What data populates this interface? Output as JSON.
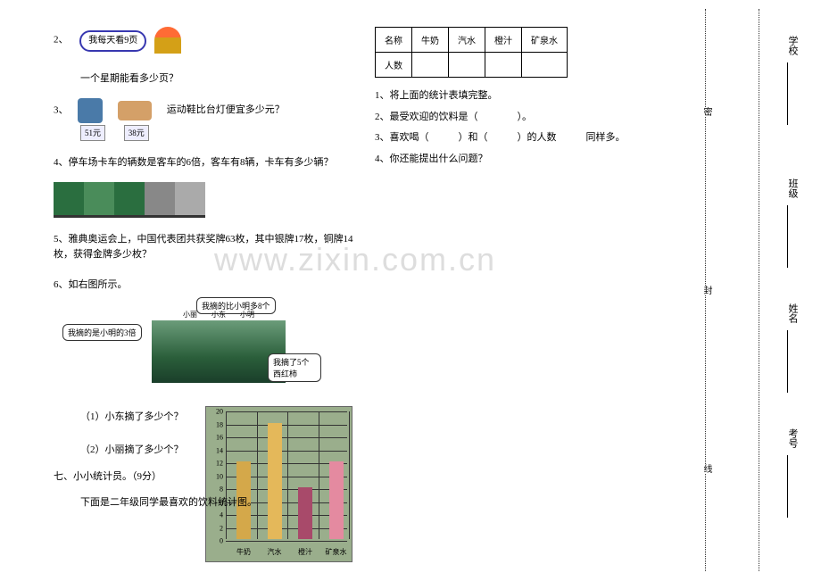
{
  "watermark": "www.zixin.com.cn",
  "left": {
    "q2": {
      "num": "2、",
      "speech": "我每天看9页",
      "below": "一个星期能看多少页？"
    },
    "q3": {
      "num": "3、",
      "text": "运动鞋比台灯便宜多少元？",
      "lamp_price": "51元",
      "shoe_price": "38元"
    },
    "q4": {
      "text": "4、停车场卡车的辆数是客车的6倍，客车有8辆，卡车有多少辆？"
    },
    "q5": {
      "text": "5、雅典奥运会上，中国代表团共获奖牌63枚，其中银牌17枚，铜牌14枚，获得金牌多少枚？"
    },
    "q6": {
      "num": "6、如右图所示。",
      "bubble1": "我摘的是小明的3倍",
      "bubble2": "我摘的比小明多8个",
      "bubble3": "我摘了5个西红柿",
      "names": "小丽　　小东　　小明",
      "sub1": "（1）小东摘了多少个？",
      "sub2": "（2）小丽摘了多少个？"
    },
    "q7": {
      "title": "七、小小统计员。（9分）",
      "desc": "下面是二年级同学最喜欢的饮料统计图。"
    }
  },
  "chart": {
    "bg": "#9aae8c",
    "yticks": [
      "20",
      "18",
      "16",
      "14",
      "12",
      "10",
      "8",
      "6",
      "4",
      "2",
      "0"
    ],
    "xlabels": [
      "牛奶",
      "汽水",
      "橙汁",
      "矿泉水"
    ],
    "bars": [
      {
        "h": 12,
        "color": "#d4a84a"
      },
      {
        "h": 18,
        "color": "#e4b85a"
      },
      {
        "h": 8,
        "color": "#a84a6a"
      },
      {
        "h": 12,
        "color": "#e48aa0"
      }
    ],
    "ymax": 20
  },
  "right": {
    "table_headers": [
      "名称",
      "牛奶",
      "汽水",
      "橙汁",
      "矿泉水"
    ],
    "table_row_label": "人数",
    "s1": "1、将上面的统计表填完整。",
    "s2": "2、最受欢迎的饮料是（　　　　）。",
    "s3": "3、喜欢喝（　　　）和（　　　）的人数　　　同样多。",
    "s4": "4、你还能提出什么问题？"
  },
  "sidebar": {
    "fields": [
      "学校",
      "班级",
      "姓名",
      "考号"
    ],
    "seal_chars": [
      "密",
      "封",
      "线"
    ]
  }
}
